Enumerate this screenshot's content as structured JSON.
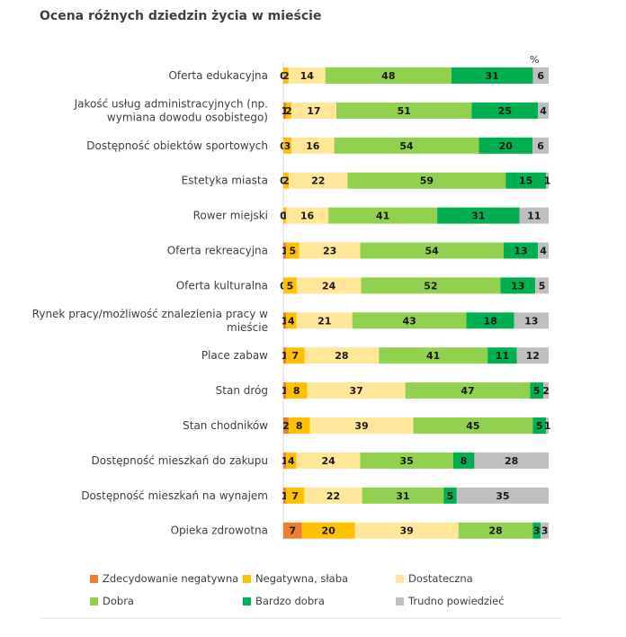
{
  "title": "Ocena różnych dziedzin życia w mieście",
  "unit_label": "%",
  "chart_data": {
    "type": "bar",
    "orientation": "horizontal",
    "stacked": true,
    "categories": [
      "Oferta edukacyjna",
      "Jakość usług administracyjnych (np. wymiana dowodu osobistego)",
      "Dostępność obiektów sportowych",
      "Estetyka miasta",
      "Rower miejski",
      "Oferta rekreacyjna",
      "Oferta kulturalna",
      "Rynek pracy/możliwość znalezienia pracy w mieście",
      "Place zabaw",
      "Stan dróg",
      "Stan chodników",
      "Dostępność mieszkań do zakupu",
      "Dostępność mieszkań na wynajem",
      "Opieka zdrowotna"
    ],
    "category_lines": [
      [
        "Oferta edukacyjna"
      ],
      [
        "Jakość usług administracyjnych (np.",
        "wymiana dowodu osobistego)"
      ],
      [
        "Dostępność obiektów sportowych"
      ],
      [
        "Estetyka miasta"
      ],
      [
        "Rower miejski"
      ],
      [
        "Oferta rekreacyjna"
      ],
      [
        "Oferta kulturalna"
      ],
      [
        "Rynek pracy/możliwość znalezienia pracy w",
        "mieście"
      ],
      [
        "Place zabaw"
      ],
      [
        "Stan dróg"
      ],
      [
        "Stan chodników"
      ],
      [
        "Dostępność mieszkań do zakupu"
      ],
      [
        "Dostępność mieszkań na wynajem"
      ],
      [
        "Opieka zdrowotna"
      ]
    ],
    "series": [
      {
        "name": "Zdecydowanie negatywna",
        "color": "#ED7D31",
        "values": [
          0,
          1,
          0,
          0,
          0,
          1,
          0,
          1,
          1,
          1,
          2,
          1,
          1,
          7
        ]
      },
      {
        "name": "Negatywna, słaba",
        "color": "#FFC000",
        "values": [
          2,
          2,
          3,
          2,
          1,
          5,
          5,
          4,
          7,
          8,
          8,
          4,
          7,
          20
        ]
      },
      {
        "name": "Dostateczna",
        "color": "#FFE699",
        "values": [
          14,
          17,
          16,
          22,
          16,
          23,
          24,
          21,
          28,
          37,
          39,
          24,
          22,
          39
        ]
      },
      {
        "name": "Dobra",
        "color": "#92D050",
        "values": [
          48,
          51,
          54,
          59,
          41,
          54,
          52,
          43,
          41,
          47,
          45,
          35,
          31,
          28
        ]
      },
      {
        "name": "Bardzo dobra",
        "color": "#00B050",
        "values": [
          31,
          25,
          20,
          15,
          31,
          13,
          13,
          18,
          11,
          5,
          5,
          8,
          5,
          3
        ]
      },
      {
        "name": "Trudno powiedzieć",
        "color": "#BFBFBF",
        "values": [
          6,
          4,
          6,
          1,
          11,
          4,
          5,
          13,
          12,
          2,
          1,
          28,
          35,
          3
        ]
      }
    ],
    "xlim": [
      0,
      100
    ],
    "legend_position": "bottom",
    "grid": false
  }
}
